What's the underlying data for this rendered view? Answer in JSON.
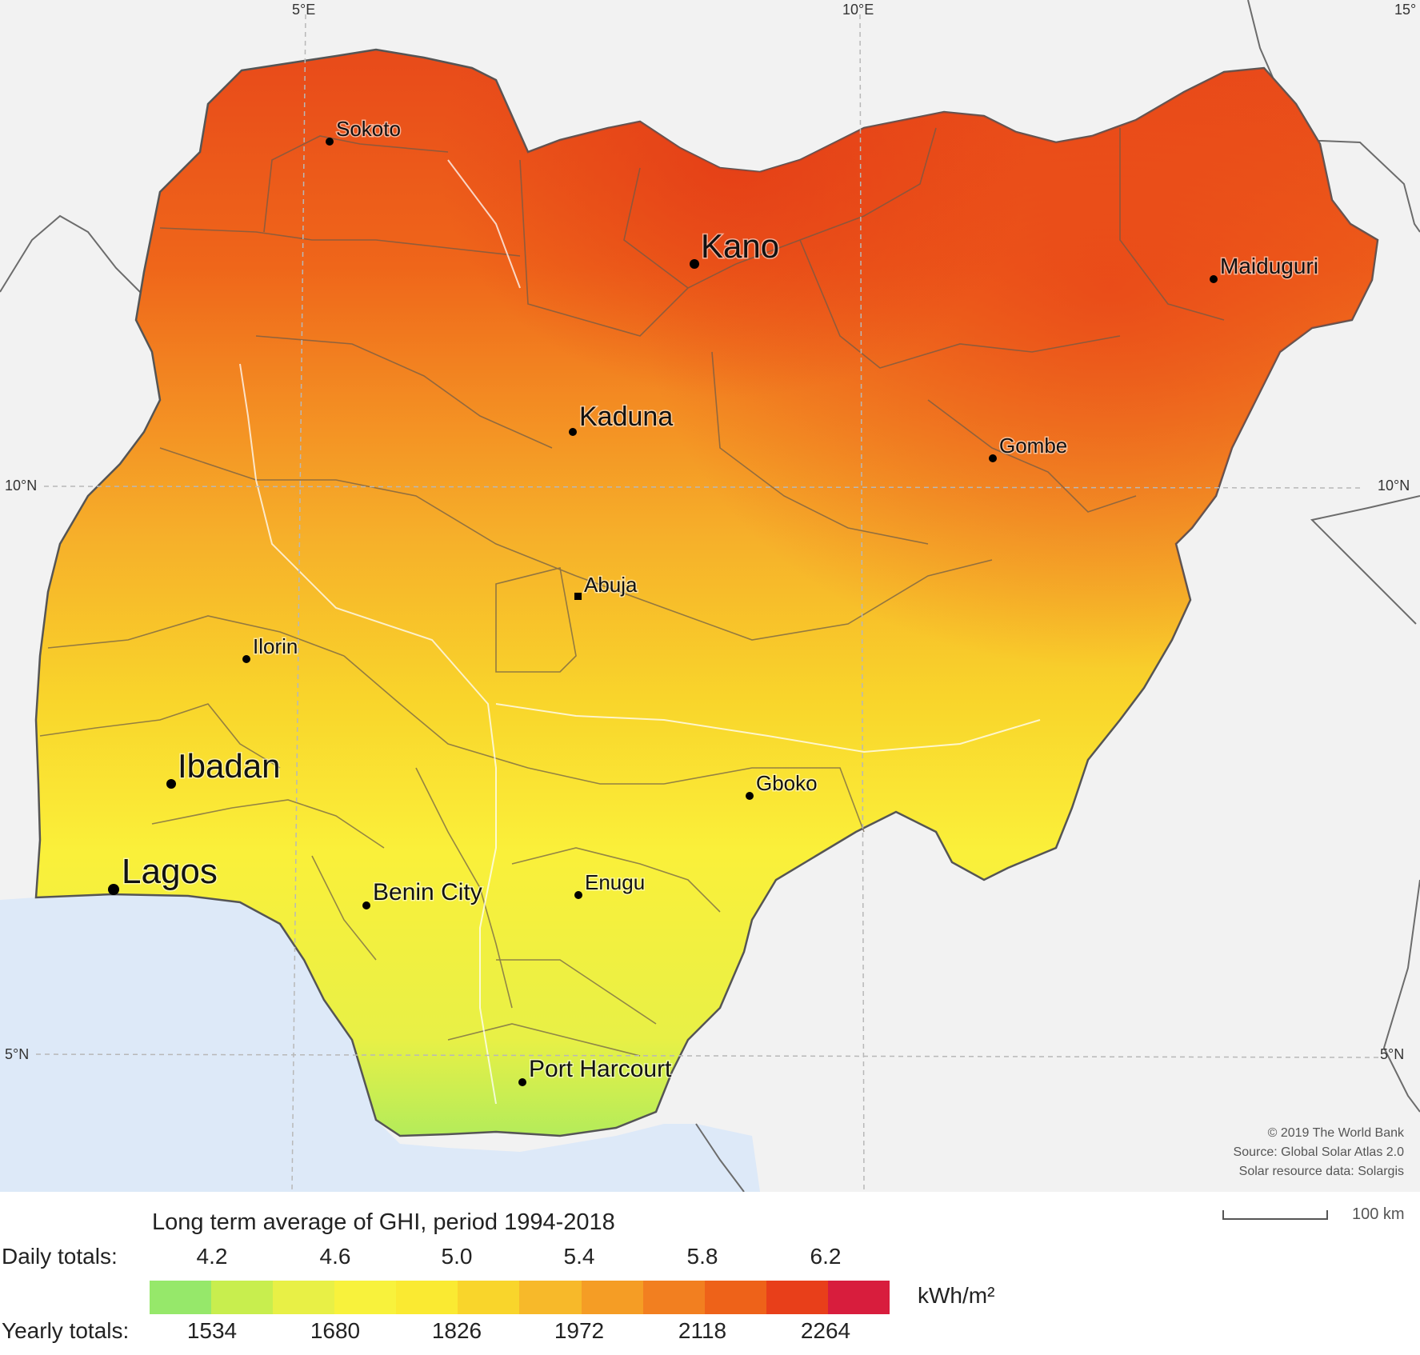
{
  "map": {
    "title": "Long term average of GHI, period 1994-2018",
    "graticule": {
      "longitudes": [
        "5°E",
        "10°E",
        "15°"
      ],
      "latitudes": [
        "10°N",
        "5°N"
      ]
    },
    "cities": [
      {
        "name": "Sokoto",
        "size": "small"
      },
      {
        "name": "Kano",
        "size": "large"
      },
      {
        "name": "Maiduguri",
        "size": "small"
      },
      {
        "name": "Kaduna",
        "size": "medium"
      },
      {
        "name": "Gombe",
        "size": "small"
      },
      {
        "name": "Abuja",
        "size": "small"
      },
      {
        "name": "Ilorin",
        "size": "small"
      },
      {
        "name": "Ibadan",
        "size": "large"
      },
      {
        "name": "Gboko",
        "size": "small"
      },
      {
        "name": "Lagos",
        "size": "large"
      },
      {
        "name": "Benin City",
        "size": "small"
      },
      {
        "name": "Enugu",
        "size": "small"
      },
      {
        "name": "Port Harcourt",
        "size": "medium"
      }
    ],
    "credits": [
      "© 2019 The World Bank",
      "Source: Global Solar Atlas 2.0",
      "Solar resource data: Solargis"
    ],
    "scale_bar": "100 km",
    "colors": {
      "ocean": "#dde9f8",
      "land_background": "#f2f2f2",
      "border": "#555555"
    }
  },
  "legend": {
    "daily_label": "Daily totals:",
    "yearly_label": "Yearly totals:",
    "unit": "kWh/m²",
    "daily_ticks": [
      "4.2",
      "4.6",
      "5.0",
      "5.4",
      "5.8",
      "6.2"
    ],
    "yearly_ticks": [
      "1534",
      "1680",
      "1826",
      "1972",
      "2118",
      "2264"
    ],
    "color_classes": [
      "#96e86a",
      "#c8ee4e",
      "#e8f046",
      "#f8f23c",
      "#faea32",
      "#f9d52b",
      "#f7b92a",
      "#f59d25",
      "#f27f20",
      "#ee6219",
      "#e83f1a",
      "#d81d3d"
    ]
  }
}
